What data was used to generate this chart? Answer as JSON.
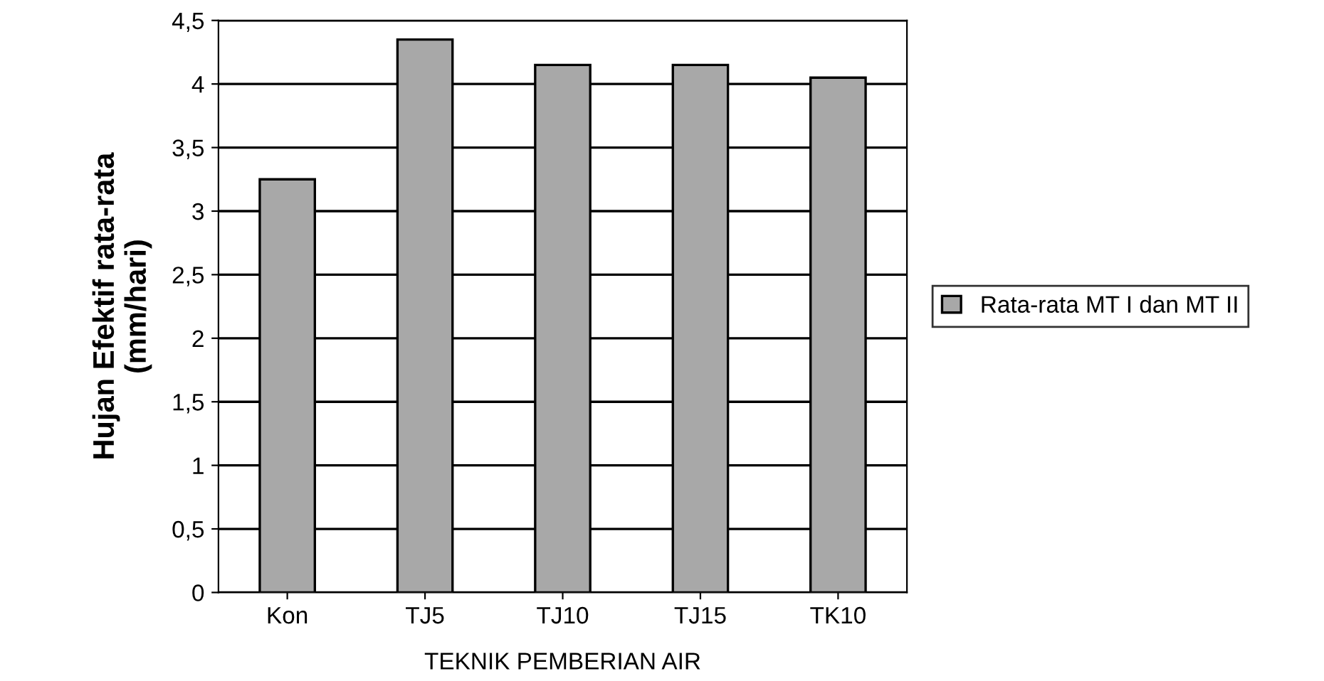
{
  "chart_data": {
    "type": "bar",
    "xlabel": "TEKNIK PEMBERIAN AIR",
    "ylabel": "Hujan Efektif rata-rata\n(mm/hari)",
    "categories": [
      "Kon",
      "TJ5",
      "TJ10",
      "TJ15",
      "TK10"
    ],
    "series": [
      {
        "name": "Rata-rata MT I dan MT II",
        "color": "#a8a8a8",
        "values": [
          3.25,
          4.35,
          4.15,
          4.15,
          4.05
        ]
      }
    ],
    "ylim": [
      0,
      4.5
    ],
    "yticks": [
      {
        "value": 0,
        "label": "0"
      },
      {
        "value": 0.5,
        "label": "0,5"
      },
      {
        "value": 1,
        "label": "1"
      },
      {
        "value": 1.5,
        "label": "1,5"
      },
      {
        "value": 2,
        "label": "2"
      },
      {
        "value": 2.5,
        "label": "2,5"
      },
      {
        "value": 3,
        "label": "3"
      },
      {
        "value": 3.5,
        "label": "3,5"
      },
      {
        "value": 4,
        "label": "4"
      },
      {
        "value": 4.5,
        "label": "4,5"
      }
    ],
    "grid": "y",
    "legend": "right"
  }
}
